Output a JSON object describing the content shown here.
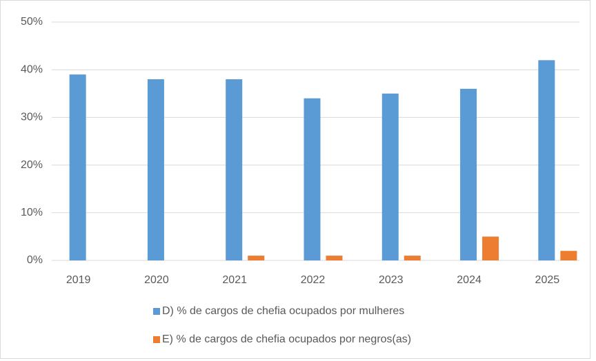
{
  "chart_data": {
    "type": "bar",
    "categories": [
      "2019",
      "2020",
      "2021",
      "2022",
      "2023",
      "2024",
      "2025"
    ],
    "series": [
      {
        "name": "D) % de cargos de chefia ocupados por mulheres",
        "color": "#5b9bd5",
        "values": [
          39,
          38,
          38,
          34,
          35,
          36,
          42
        ]
      },
      {
        "name": "E) % de cargos de chefia ocupados por negros(as)",
        "color": "#ed7d31",
        "values": [
          0,
          0,
          1,
          1,
          1,
          5,
          2
        ]
      }
    ],
    "ylim": [
      0,
      50
    ],
    "yticks": [
      {
        "value": 0,
        "label": "0%"
      },
      {
        "value": 10,
        "label": "10%"
      },
      {
        "value": 20,
        "label": "20%"
      },
      {
        "value": 30,
        "label": "30%"
      },
      {
        "value": 40,
        "label": "40%"
      },
      {
        "value": 50,
        "label": "50%"
      }
    ],
    "grid": true,
    "legend": "bottom"
  }
}
